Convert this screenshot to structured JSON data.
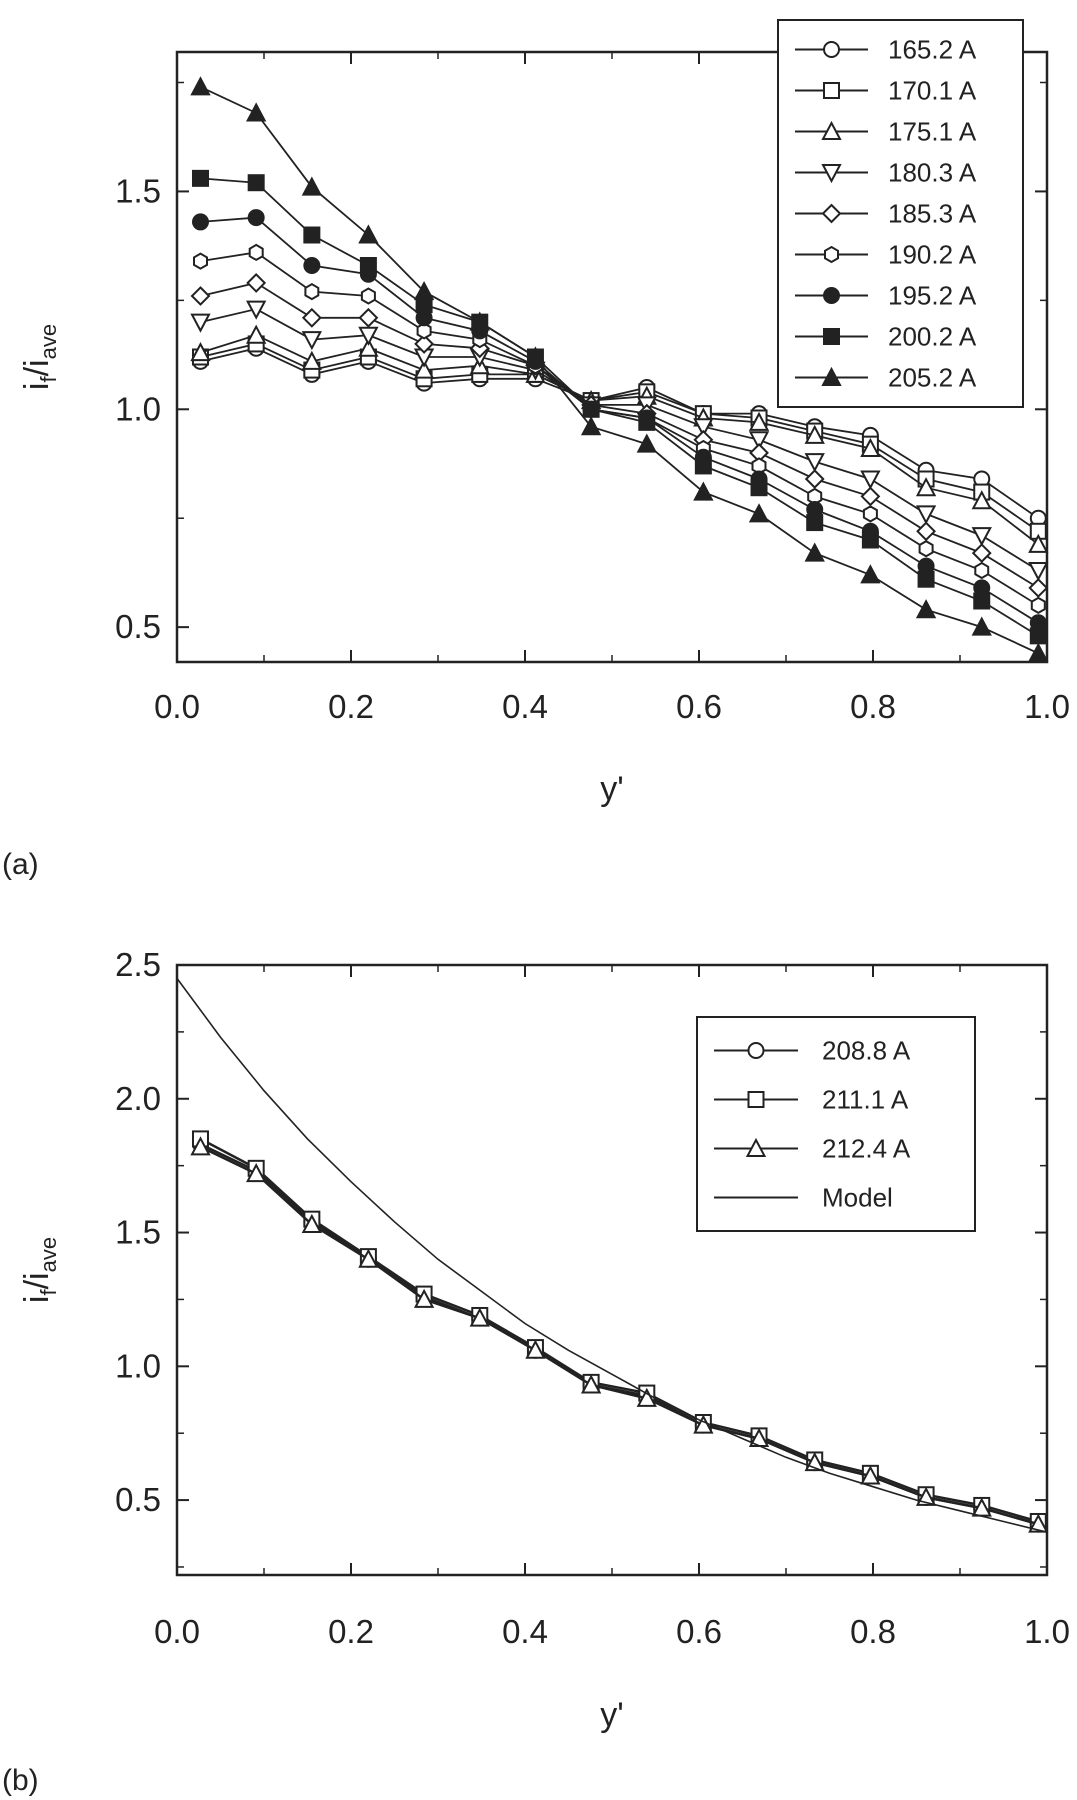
{
  "chart_data": [
    {
      "type": "line",
      "panel_label": "(a)",
      "xlabel": "y'",
      "ylabel": "i",
      "ylabel_sub1": "f",
      "ylabel_mid": "/i",
      "ylabel_sub2": "ave",
      "xlim": [
        0.0,
        1.0
      ],
      "ylim": [
        0.42,
        1.82
      ],
      "xticks": [
        "0.0",
        "0.2",
        "0.4",
        "0.6",
        "0.8",
        "1.0"
      ],
      "yticks": [
        "0.5",
        "1.0",
        "1.5"
      ],
      "legend_position": "top-right",
      "x": [
        0.027,
        0.091,
        0.155,
        0.22,
        0.284,
        0.348,
        0.412,
        0.476,
        0.54,
        0.605,
        0.669,
        0.733,
        0.797,
        0.861,
        0.925,
        0.99
      ],
      "series": [
        {
          "name": "165.2 A",
          "marker": "circle-open",
          "values": [
            1.11,
            1.14,
            1.08,
            1.11,
            1.06,
            1.07,
            1.07,
            1.02,
            1.05,
            0.99,
            0.99,
            0.96,
            0.94,
            0.86,
            0.84,
            0.75
          ]
        },
        {
          "name": "170.1 A",
          "marker": "square-open",
          "values": [
            1.12,
            1.15,
            1.09,
            1.12,
            1.07,
            1.08,
            1.08,
            1.02,
            1.04,
            0.99,
            0.98,
            0.95,
            0.92,
            0.84,
            0.81,
            0.72
          ]
        },
        {
          "name": "175.1 A",
          "marker": "triangle-up-open",
          "values": [
            1.13,
            1.17,
            1.11,
            1.14,
            1.09,
            1.1,
            1.08,
            1.02,
            1.03,
            0.98,
            0.97,
            0.94,
            0.91,
            0.82,
            0.79,
            0.69
          ]
        },
        {
          "name": "180.3 A",
          "marker": "triangle-down-open",
          "values": [
            1.2,
            1.23,
            1.16,
            1.17,
            1.12,
            1.12,
            1.09,
            1.01,
            1.01,
            0.96,
            0.93,
            0.88,
            0.84,
            0.76,
            0.71,
            0.63
          ]
        },
        {
          "name": "185.3 A",
          "marker": "diamond-open",
          "values": [
            1.26,
            1.29,
            1.21,
            1.21,
            1.15,
            1.14,
            1.1,
            1.01,
            0.99,
            0.93,
            0.9,
            0.84,
            0.8,
            0.72,
            0.67,
            0.59
          ]
        },
        {
          "name": "190.2 A",
          "marker": "hexagon-open",
          "values": [
            1.34,
            1.36,
            1.27,
            1.26,
            1.18,
            1.16,
            1.1,
            1.0,
            0.98,
            0.91,
            0.87,
            0.8,
            0.76,
            0.68,
            0.63,
            0.55
          ]
        },
        {
          "name": "195.2 A",
          "marker": "circle-filled",
          "values": [
            1.43,
            1.44,
            1.33,
            1.31,
            1.21,
            1.18,
            1.11,
            1.0,
            0.98,
            0.89,
            0.84,
            0.77,
            0.72,
            0.64,
            0.59,
            0.51
          ]
        },
        {
          "name": "200.2 A",
          "marker": "square-filled",
          "values": [
            1.53,
            1.52,
            1.4,
            1.33,
            1.24,
            1.2,
            1.12,
            1.0,
            0.97,
            0.87,
            0.82,
            0.74,
            0.7,
            0.61,
            0.56,
            0.48
          ]
        },
        {
          "name": "205.2 A",
          "marker": "triangle-up-filled",
          "values": [
            1.74,
            1.68,
            1.51,
            1.4,
            1.27,
            1.2,
            1.12,
            0.96,
            0.92,
            0.81,
            0.76,
            0.67,
            0.62,
            0.54,
            0.5,
            0.44
          ]
        }
      ]
    },
    {
      "type": "line",
      "panel_label": "(b)",
      "xlabel": "y'",
      "ylabel": "i",
      "ylabel_sub1": "f",
      "ylabel_mid": "/i",
      "ylabel_sub2": "ave",
      "xlim": [
        0.0,
        1.0
      ],
      "ylim": [
        0.22,
        2.5
      ],
      "xticks": [
        "0.0",
        "0.2",
        "0.4",
        "0.6",
        "0.8",
        "1.0"
      ],
      "yticks": [
        "0.5",
        "1.0",
        "1.5",
        "2.0",
        "2.5"
      ],
      "legend_position": "upper-right",
      "x": [
        0.027,
        0.091,
        0.155,
        0.22,
        0.284,
        0.348,
        0.412,
        0.476,
        0.54,
        0.605,
        0.669,
        0.733,
        0.797,
        0.861,
        0.925,
        0.99
      ],
      "series": [
        {
          "name": "208.8 A",
          "marker": "circle-open",
          "values": [
            1.83,
            1.73,
            1.54,
            1.4,
            1.26,
            1.18,
            1.06,
            0.93,
            0.89,
            0.78,
            0.73,
            0.64,
            0.59,
            0.51,
            0.47,
            0.41
          ]
        },
        {
          "name": "211.1 A",
          "marker": "square-open",
          "values": [
            1.85,
            1.74,
            1.55,
            1.41,
            1.27,
            1.19,
            1.07,
            0.94,
            0.9,
            0.79,
            0.74,
            0.65,
            0.6,
            0.52,
            0.48,
            0.42
          ]
        },
        {
          "name": "212.4 A",
          "marker": "triangle-up-open",
          "values": [
            1.82,
            1.72,
            1.53,
            1.4,
            1.25,
            1.18,
            1.06,
            0.93,
            0.88,
            0.78,
            0.73,
            0.64,
            0.59,
            0.51,
            0.47,
            0.41
          ]
        },
        {
          "name": "Model",
          "marker": "none",
          "x": [
            0.0,
            0.05,
            0.1,
            0.15,
            0.2,
            0.25,
            0.3,
            0.35,
            0.4,
            0.45,
            0.5,
            0.55,
            0.6,
            0.65,
            0.7,
            0.75,
            0.8,
            0.85,
            0.9,
            0.95,
            1.0
          ],
          "values": [
            2.45,
            2.23,
            2.03,
            1.85,
            1.69,
            1.54,
            1.4,
            1.28,
            1.16,
            1.06,
            0.97,
            0.88,
            0.8,
            0.73,
            0.66,
            0.6,
            0.55,
            0.5,
            0.46,
            0.42,
            0.38
          ]
        }
      ]
    }
  ]
}
